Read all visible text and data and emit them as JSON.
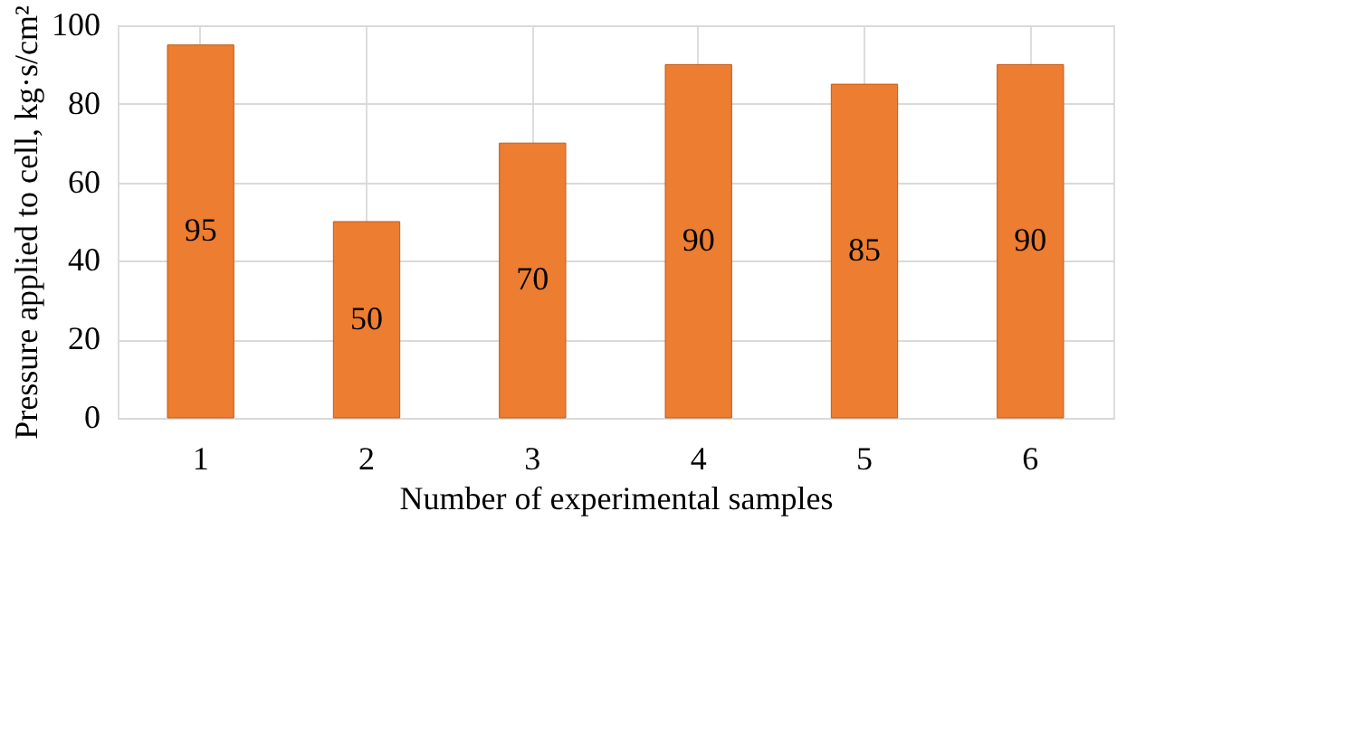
{
  "chart_data": {
    "type": "bar",
    "categories": [
      "1",
      "2",
      "3",
      "4",
      "5",
      "6"
    ],
    "values": [
      95,
      50,
      70,
      90,
      85,
      90
    ],
    "color": "#ed7d31",
    "xlabel": "Number of experimental samples",
    "ylabel": "Pressure applied to cell, kg·s/cm²",
    "ylim": [
      0,
      100
    ],
    "yticks": [
      0,
      20,
      40,
      60,
      80,
      100
    ],
    "grid": true,
    "data_labels": true
  }
}
